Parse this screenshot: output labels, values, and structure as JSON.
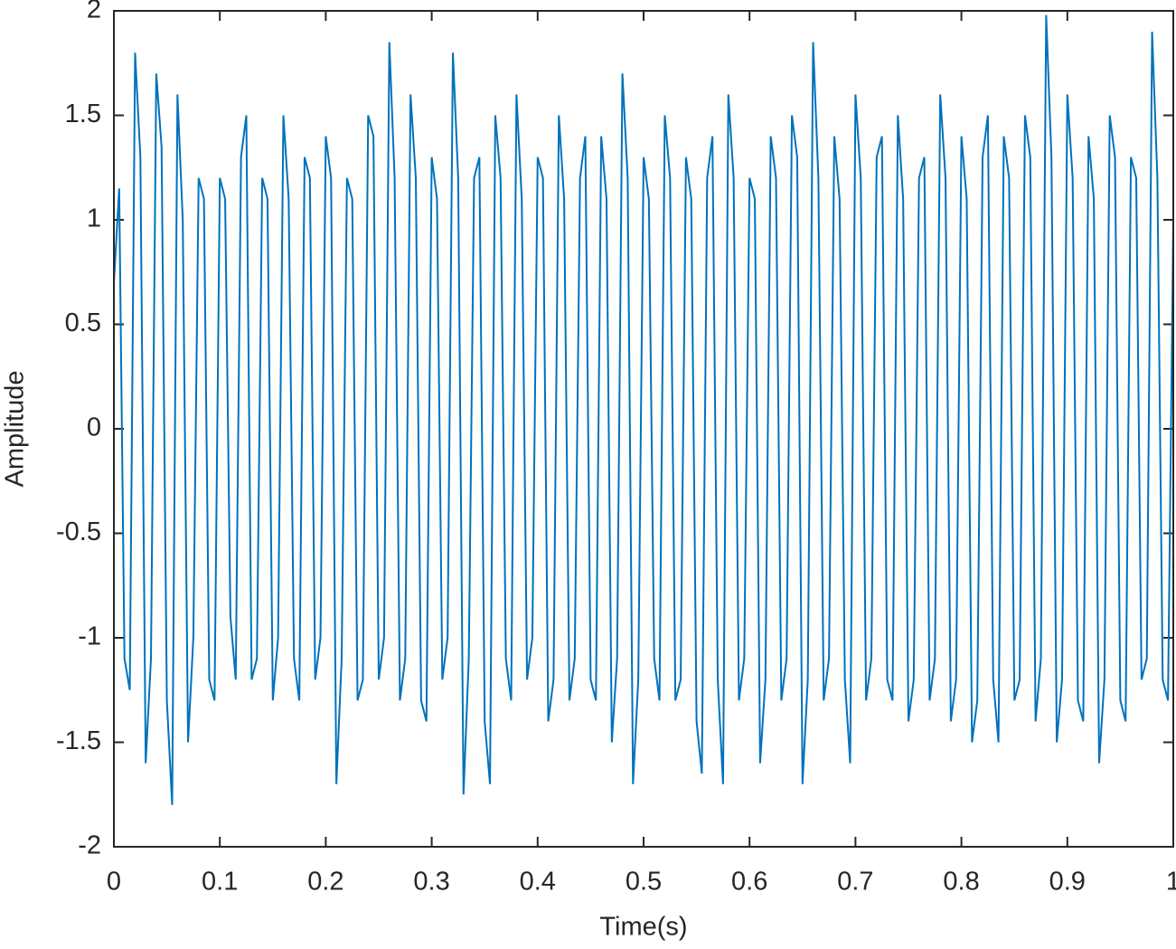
{
  "chart_data": {
    "type": "line",
    "xlabel": "Time(s)",
    "ylabel": "Amplitude",
    "xlim": [
      0,
      1
    ],
    "ylim": [
      -2,
      2
    ],
    "xticks": [
      0,
      0.1,
      0.2,
      0.3,
      0.4,
      0.5,
      0.6,
      0.7,
      0.8,
      0.9,
      1
    ],
    "yticks": [
      -2,
      -1.5,
      -1,
      -0.5,
      0,
      0.5,
      1,
      1.5,
      2
    ],
    "x": [
      0,
      0.005,
      0.01,
      0.015,
      0.02,
      0.025,
      0.03,
      0.035,
      0.04,
      0.045,
      0.05,
      0.055,
      0.06,
      0.065,
      0.07,
      0.075,
      0.08,
      0.085,
      0.09,
      0.095,
      0.1,
      0.105,
      0.11,
      0.115,
      0.12,
      0.125,
      0.13,
      0.135,
      0.14,
      0.145,
      0.15,
      0.155,
      0.16,
      0.165,
      0.17,
      0.175,
      0.18,
      0.185,
      0.19,
      0.195,
      0.2,
      0.205,
      0.21,
      0.215,
      0.22,
      0.225,
      0.23,
      0.235,
      0.24,
      0.245,
      0.25,
      0.255,
      0.26,
      0.265,
      0.27,
      0.275,
      0.28,
      0.285,
      0.29,
      0.295,
      0.3,
      0.305,
      0.31,
      0.315,
      0.32,
      0.325,
      0.33,
      0.335,
      0.34,
      0.345,
      0.35,
      0.355,
      0.36,
      0.365,
      0.37,
      0.375,
      0.38,
      0.385,
      0.39,
      0.395,
      0.4,
      0.405,
      0.41,
      0.415,
      0.42,
      0.425,
      0.43,
      0.435,
      0.44,
      0.445,
      0.45,
      0.455,
      0.46,
      0.465,
      0.47,
      0.475,
      0.48,
      0.485,
      0.49,
      0.495,
      0.5,
      0.505,
      0.51,
      0.515,
      0.52,
      0.525,
      0.53,
      0.535,
      0.54,
      0.545,
      0.55,
      0.555,
      0.56,
      0.565,
      0.57,
      0.575,
      0.58,
      0.585,
      0.59,
      0.595,
      0.6,
      0.605,
      0.61,
      0.615,
      0.62,
      0.625,
      0.63,
      0.635,
      0.64,
      0.645,
      0.65,
      0.655,
      0.66,
      0.665,
      0.67,
      0.675,
      0.68,
      0.685,
      0.69,
      0.695,
      0.7,
      0.705,
      0.71,
      0.715,
      0.72,
      0.725,
      0.73,
      0.735,
      0.74,
      0.745,
      0.75,
      0.755,
      0.76,
      0.765,
      0.77,
      0.775,
      0.78,
      0.785,
      0.79,
      0.795,
      0.8,
      0.805,
      0.81,
      0.815,
      0.82,
      0.825,
      0.83,
      0.835,
      0.84,
      0.845,
      0.85,
      0.855,
      0.86,
      0.865,
      0.87,
      0.875,
      0.88,
      0.885,
      0.89,
      0.895,
      0.9,
      0.905,
      0.91,
      0.915,
      0.92,
      0.925,
      0.93,
      0.935,
      0.94,
      0.945,
      0.95,
      0.955,
      0.96,
      0.965,
      0.97,
      0.975,
      0.98,
      0.985,
      0.99,
      0.995,
      1
    ],
    "series": [
      {
        "name": "Amplitude",
        "color": "#0072bd",
        "values": [
          0.7,
          1.15,
          -1.1,
          -1.25,
          1.8,
          1.3,
          -1.6,
          -1.1,
          1.7,
          1.35,
          -1.3,
          -1.8,
          1.6,
          1.0,
          -1.5,
          -1.0,
          1.2,
          1.1,
          -1.2,
          -1.3,
          1.2,
          1.1,
          -0.9,
          -1.2,
          1.3,
          1.5,
          -1.2,
          -1.1,
          1.2,
          1.1,
          -1.3,
          -1.0,
          1.5,
          1.1,
          -1.1,
          -1.3,
          1.3,
          1.2,
          -1.2,
          -1.0,
          1.4,
          1.2,
          -1.7,
          -1.1,
          1.2,
          1.1,
          -1.3,
          -1.2,
          1.5,
          1.4,
          -1.2,
          -1.0,
          1.85,
          1.2,
          -1.3,
          -1.1,
          1.6,
          1.2,
          -1.3,
          -1.4,
          1.3,
          1.1,
          -1.2,
          -1.0,
          1.8,
          1.2,
          -1.75,
          -1.1,
          1.2,
          1.3,
          -1.4,
          -1.7,
          1.5,
          1.2,
          -1.1,
          -1.3,
          1.6,
          1.1,
          -1.2,
          -1.0,
          1.3,
          1.2,
          -1.4,
          -1.2,
          1.5,
          1.1,
          -1.3,
          -1.1,
          1.2,
          1.4,
          -1.2,
          -1.3,
          1.4,
          1.1,
          -1.5,
          -1.1,
          1.7,
          1.2,
          -1.7,
          -1.2,
          1.3,
          1.1,
          -1.1,
          -1.3,
          1.5,
          1.2,
          -1.3,
          -1.2,
          1.3,
          1.1,
          -1.4,
          -1.65,
          1.2,
          1.4,
          -1.2,
          -1.7,
          1.6,
          1.2,
          -1.3,
          -1.1,
          1.2,
          1.1,
          -1.6,
          -1.2,
          1.4,
          1.2,
          -1.3,
          -1.1,
          1.5,
          1.3,
          -1.7,
          -1.2,
          1.85,
          1.2,
          -1.3,
          -1.1,
          1.4,
          1.1,
          -1.2,
          -1.6,
          1.6,
          1.2,
          -1.3,
          -1.1,
          1.3,
          1.4,
          -1.2,
          -1.3,
          1.5,
          1.1,
          -1.4,
          -1.2,
          1.2,
          1.3,
          -1.3,
          -1.1,
          1.6,
          1.2,
          -1.4,
          -1.2,
          1.4,
          1.1,
          -1.5,
          -1.3,
          1.3,
          1.5,
          -1.2,
          -1.5,
          1.4,
          1.2,
          -1.3,
          -1.2,
          1.5,
          1.3,
          -1.4,
          -1.1,
          1.98,
          1.3,
          -1.5,
          -1.2,
          1.6,
          1.2,
          -1.3,
          -1.4,
          1.4,
          1.1,
          -1.6,
          -1.2,
          1.5,
          1.3,
          -1.3,
          -1.4,
          1.3,
          1.2,
          -1.2,
          -1.1,
          1.9,
          1.2,
          -1.2,
          -1.3,
          1.0
        ]
      }
    ]
  }
}
